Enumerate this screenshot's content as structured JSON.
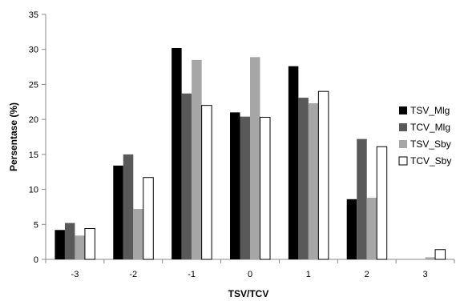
{
  "chart_data": {
    "type": "bar",
    "title": "",
    "xlabel": "TSV/TCV",
    "ylabel": "Persentase (%)",
    "ylim": [
      0,
      35
    ],
    "yticks": [
      0,
      5,
      10,
      15,
      20,
      25,
      30,
      35
    ],
    "grid": false,
    "legend_position": "right",
    "categories": [
      "-3",
      "-2",
      "-1",
      "0",
      "1",
      "2",
      "3"
    ],
    "series": [
      {
        "name": "TSV_Mlg",
        "color": "#000000",
        "values": [
          4.2,
          13.4,
          30.2,
          21.0,
          27.6,
          8.6,
          0.0
        ]
      },
      {
        "name": "TCV_Mlg",
        "color": "#595959",
        "values": [
          5.2,
          15.0,
          23.7,
          20.4,
          23.1,
          17.2,
          0.0
        ]
      },
      {
        "name": "TSV_Sby",
        "color": "#a6a6a6",
        "values": [
          3.4,
          7.2,
          28.5,
          28.9,
          22.3,
          8.8,
          0.3
        ]
      },
      {
        "name": "TCV_Sby",
        "color": "#ffffff",
        "values": [
          4.4,
          11.7,
          22.0,
          20.3,
          24.0,
          16.1,
          1.4
        ]
      }
    ]
  }
}
